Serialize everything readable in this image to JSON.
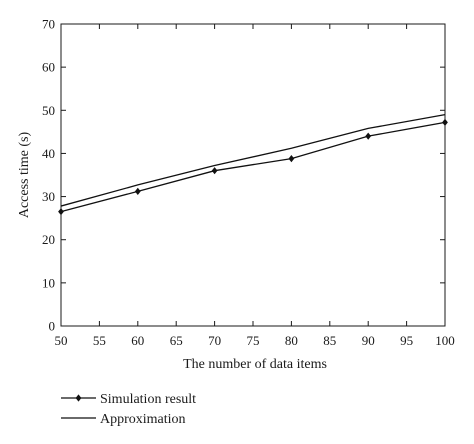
{
  "chart_data": {
    "type": "line",
    "xlabel": "The number of data items",
    "ylabel": "Access time (s)",
    "xlim": [
      50,
      100
    ],
    "ylim": [
      0,
      70
    ],
    "xticks": [
      50,
      55,
      60,
      65,
      70,
      75,
      80,
      85,
      90,
      95,
      100
    ],
    "yticks": [
      0,
      10,
      20,
      30,
      40,
      50,
      60,
      70
    ],
    "grid": false,
    "legend_position": "bottom-left",
    "series": [
      {
        "name": "Simulation result",
        "marker": "diamond",
        "color": "#111111",
        "x": [
          50,
          60,
          70,
          80,
          90,
          100
        ],
        "values": [
          26.5,
          31.2,
          36.0,
          38.8,
          44.0,
          47.2
        ]
      },
      {
        "name": "Approximation",
        "marker": "none",
        "color": "#111111",
        "x": [
          50,
          60,
          70,
          80,
          90,
          100
        ],
        "values": [
          27.8,
          32.7,
          37.2,
          41.2,
          45.8,
          49.0
        ]
      }
    ]
  }
}
